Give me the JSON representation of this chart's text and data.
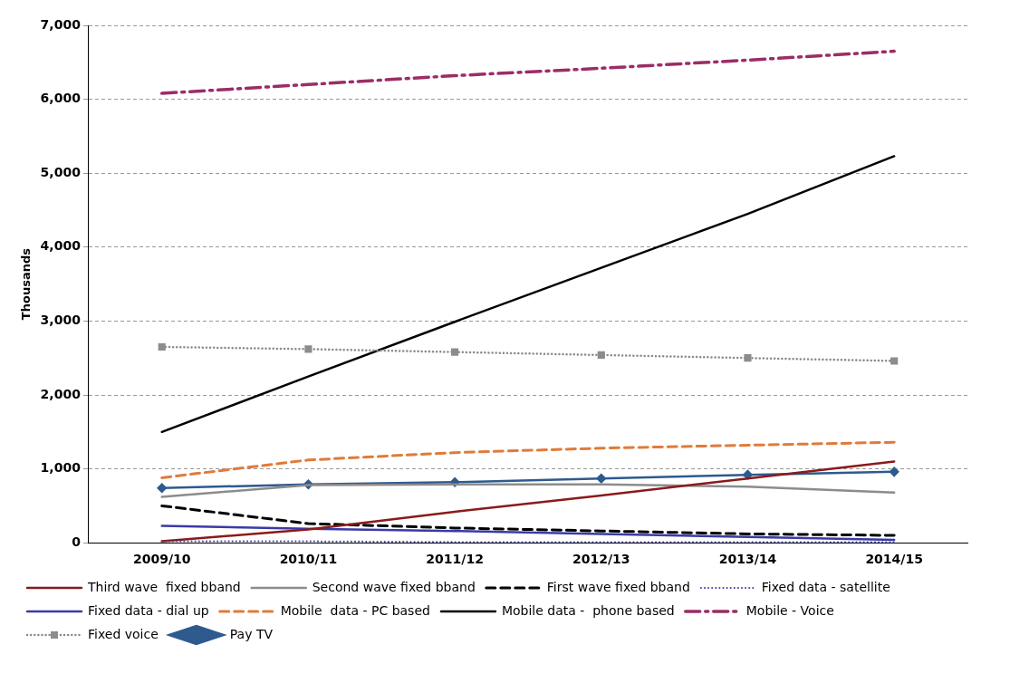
{
  "chart_data": {
    "type": "line",
    "ylabel": "Thousands",
    "categories": [
      "2009/10",
      "2010/11",
      "2011/12",
      "2012/13",
      "2013/14",
      "2014/15"
    ],
    "ylim": [
      0,
      7000
    ],
    "yticks": [
      {
        "value": 0,
        "label": "0"
      },
      {
        "value": 1000,
        "label": "1,000"
      },
      {
        "value": 2000,
        "label": "2,000"
      },
      {
        "value": 3000,
        "label": "3,000"
      },
      {
        "value": 4000,
        "label": "4,000"
      },
      {
        "value": 5000,
        "label": "5,000"
      },
      {
        "value": 6000,
        "label": "6,000"
      },
      {
        "value": 7000,
        "label": "7,000"
      }
    ],
    "grid": "y",
    "legend": "bottom",
    "marker": "none",
    "series": [
      {
        "name": "Third wave  fixed bband",
        "color": "#8b1a1a",
        "line_style": "solid",
        "values": [
          20,
          180,
          420,
          640,
          870,
          1100
        ]
      },
      {
        "name": "Second wave fixed bband",
        "color": "#8c8c8c",
        "line_style": "solid",
        "values": [
          620,
          780,
          790,
          790,
          760,
          680
        ]
      },
      {
        "name": "First wave fixed bband",
        "color": "#000000",
        "line_style": "dashed",
        "values": [
          500,
          260,
          200,
          160,
          120,
          100
        ]
      },
      {
        "name": "Fixed data - satellite",
        "color": "#4040b0",
        "line_style": "dotted",
        "values": [
          20,
          20,
          10,
          10,
          10,
          10
        ]
      },
      {
        "name": "Fixed data - dial up",
        "color": "#3a3aa8",
        "line_style": "solid",
        "values": [
          230,
          190,
          160,
          120,
          80,
          40
        ]
      },
      {
        "name": "Mobile  data - PC based",
        "color": "#e07b39",
        "line_style": "dashed",
        "values": [
          880,
          1120,
          1220,
          1280,
          1320,
          1360
        ]
      },
      {
        "name": "Mobile data -  phone based",
        "color": "#000000",
        "line_style": "solid",
        "values": [
          1500,
          2250,
          2990,
          3720,
          4450,
          5230
        ]
      },
      {
        "name": "Mobile - Voice",
        "color": "#9b2d66",
        "line_style": "dashdot",
        "values": [
          6080,
          6200,
          6320,
          6420,
          6530,
          6650
        ]
      },
      {
        "name": "Fixed voice",
        "color": "#8c8c8c",
        "line_style": "dotted",
        "marker": "square",
        "values": [
          2650,
          2620,
          2580,
          2540,
          2500,
          2460
        ]
      },
      {
        "name": "Pay TV",
        "color": "#2e5a8e",
        "line_style": "solid",
        "marker": "diamond",
        "values": [
          740,
          790,
          820,
          870,
          920,
          960
        ]
      }
    ]
  }
}
